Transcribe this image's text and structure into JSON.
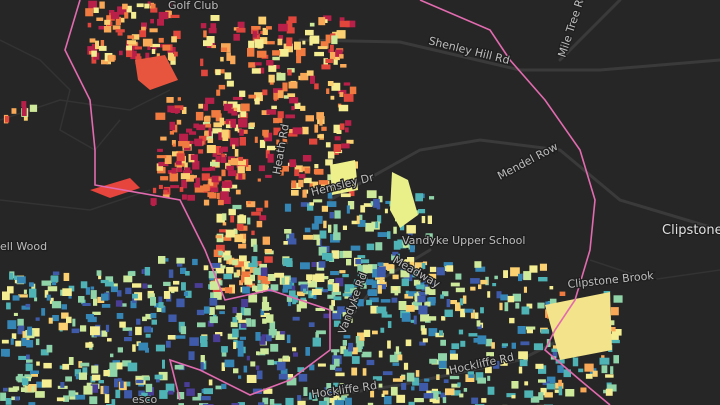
{
  "labels": {
    "golf_club": "Golf Club",
    "shenley_hill_rd": "Shenley Hill Rd",
    "mile_tree_rd": "Mile Tree Ro",
    "mendel_row": "Mendel Row",
    "clipstone": "Clipstone",
    "clipstone_brook": "Clipstone Brook",
    "vandyke_upper_school": "Vandyke Upper School",
    "meadway": "Meadway",
    "hemsley_dr": "Hemsley Dr",
    "heath_rd": "Heath Rd",
    "ell_wood": "ell Wood",
    "vandyke_rd": "Vandyke Rd",
    "hockliffe_rd_west": "Hockliffe Rd",
    "hockliffe_rd_east": "Hockliffe Rd",
    "tesco": "esco"
  }
}
